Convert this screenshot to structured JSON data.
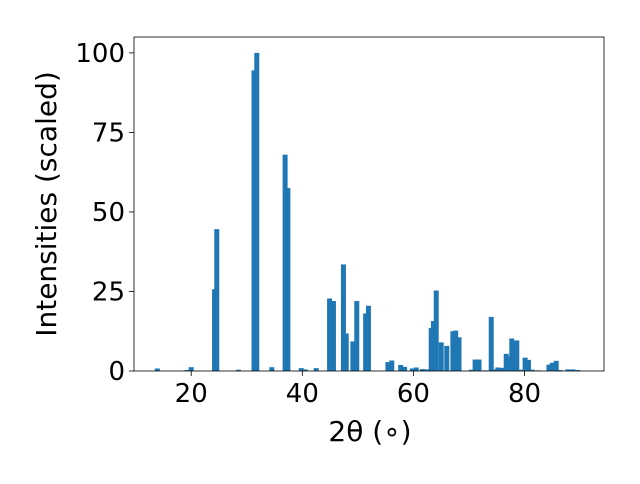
{
  "chart_data": {
    "type": "bar",
    "title": "",
    "xlabel": "2θ (∘)",
    "ylabel": "Intensities (scaled)",
    "xlim": [
      9.7,
      94.3
    ],
    "ylim": [
      0,
      105
    ],
    "xticks": [
      20,
      40,
      60,
      80
    ],
    "yticks": [
      0,
      25,
      50,
      75,
      100
    ],
    "grid": false,
    "bar_color": "#1f77b4",
    "bar_width": 0.9,
    "x": [
      13.9,
      19.3,
      20.0,
      24.2,
      24.6,
      28.5,
      31.3,
      31.8,
      34.5,
      36.9,
      37.4,
      39.8,
      40.5,
      42.5,
      44.9,
      45.6,
      47.4,
      47.9,
      49.1,
      49.8,
      51.4,
      51.9,
      55.4,
      56.1,
      57.7,
      58.4,
      59.8,
      60.5,
      61.6,
      62.4,
      63.2,
      63.6,
      64.1,
      65.0,
      66.0,
      67.1,
      67.6,
      68.2,
      70.4,
      71.1,
      71.8,
      72.9,
      74.0,
      74.6,
      75.2,
      76.0,
      76.7,
      77.2,
      77.7,
      78.2,
      78.6,
      79.4,
      80.1,
      80.7,
      81.4,
      82.5,
      84.4,
      85.0,
      85.7,
      86.4,
      87.8,
      88.7,
      89.6
    ],
    "values": [
      0.8,
      0.3,
      1.2,
      25.7,
      44.6,
      0.4,
      94.5,
      100.0,
      1.2,
      68.0,
      57.5,
      0.9,
      0.5,
      0.9,
      22.8,
      22.0,
      33.5,
      11.8,
      9.3,
      22.0,
      18.1,
      20.5,
      2.8,
      3.3,
      1.9,
      1.3,
      0.8,
      1.1,
      0.6,
      0.5,
      13.5,
      15.7,
      25.3,
      9.0,
      7.9,
      12.5,
      12.7,
      10.6,
      0.4,
      3.6,
      3.6,
      0.2,
      17.0,
      0.5,
      1.1,
      1.0,
      5.4,
      4.5,
      10.2,
      9.0,
      9.6,
      0.4,
      4.2,
      3.5,
      0.4,
      0.2,
      2.0,
      2.6,
      3.2,
      0.3,
      0.5,
      0.5,
      0.3
    ]
  }
}
